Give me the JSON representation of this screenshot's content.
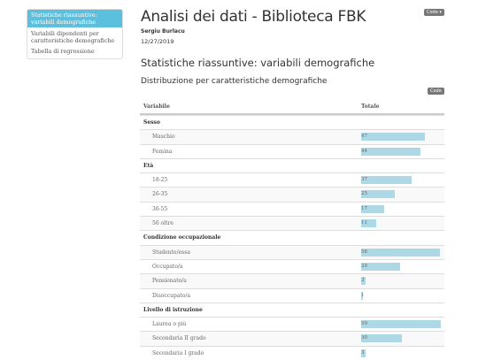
{
  "toc": {
    "items": [
      {
        "label": "Statistiche riassuntive: variabili demografiche",
        "active": true
      },
      {
        "label": "Variabili dipendenti per caratteristiche demografiche",
        "active": false
      },
      {
        "label": "Tabella di regressione",
        "active": false
      }
    ]
  },
  "header": {
    "title": "Analisi dei dati - Biblioteca FBK",
    "author": "Sergiu Burlacu",
    "date": "12/27/2019",
    "code_button": "Code ▾"
  },
  "section": {
    "h2": "Statistiche riassuntive: variabili demografiche",
    "h3": "Distribuzione per caratteristiche demografiche",
    "code_button": "Code"
  },
  "table": {
    "columns": [
      "Variabile",
      "Totale"
    ],
    "max_value": 60,
    "rows": [
      {
        "type": "group",
        "label": "Sesso"
      },
      {
        "type": "item",
        "label": "Maschio",
        "value": 47
      },
      {
        "type": "item",
        "label": "Femina",
        "value": 44
      },
      {
        "type": "group",
        "label": "Età"
      },
      {
        "type": "item",
        "label": "18-25",
        "value": 37
      },
      {
        "type": "item",
        "label": "26-35",
        "value": 25
      },
      {
        "type": "item",
        "label": "36-55",
        "value": 17
      },
      {
        "type": "item",
        "label": "56 oltre",
        "value": 11
      },
      {
        "type": "group",
        "label": "Condizione occupazionale"
      },
      {
        "type": "item",
        "label": "Studente/essa",
        "value": 58
      },
      {
        "type": "item",
        "label": "Occupato/a",
        "value": 29
      },
      {
        "type": "item",
        "label": "Pensionato/a",
        "value": 3
      },
      {
        "type": "item",
        "label": "Disoccupato/a",
        "value": 1
      },
      {
        "type": "group",
        "label": "Livello di istruzione"
      },
      {
        "type": "item",
        "label": "Laurea o più",
        "value": 59
      },
      {
        "type": "item",
        "label": "Secondaria II grado",
        "value": 30
      },
      {
        "type": "item",
        "label": "Secondaria I grado",
        "value": 3
      }
    ]
  },
  "colors": {
    "accent": "#5bc0de",
    "bar": "#add8e6"
  }
}
